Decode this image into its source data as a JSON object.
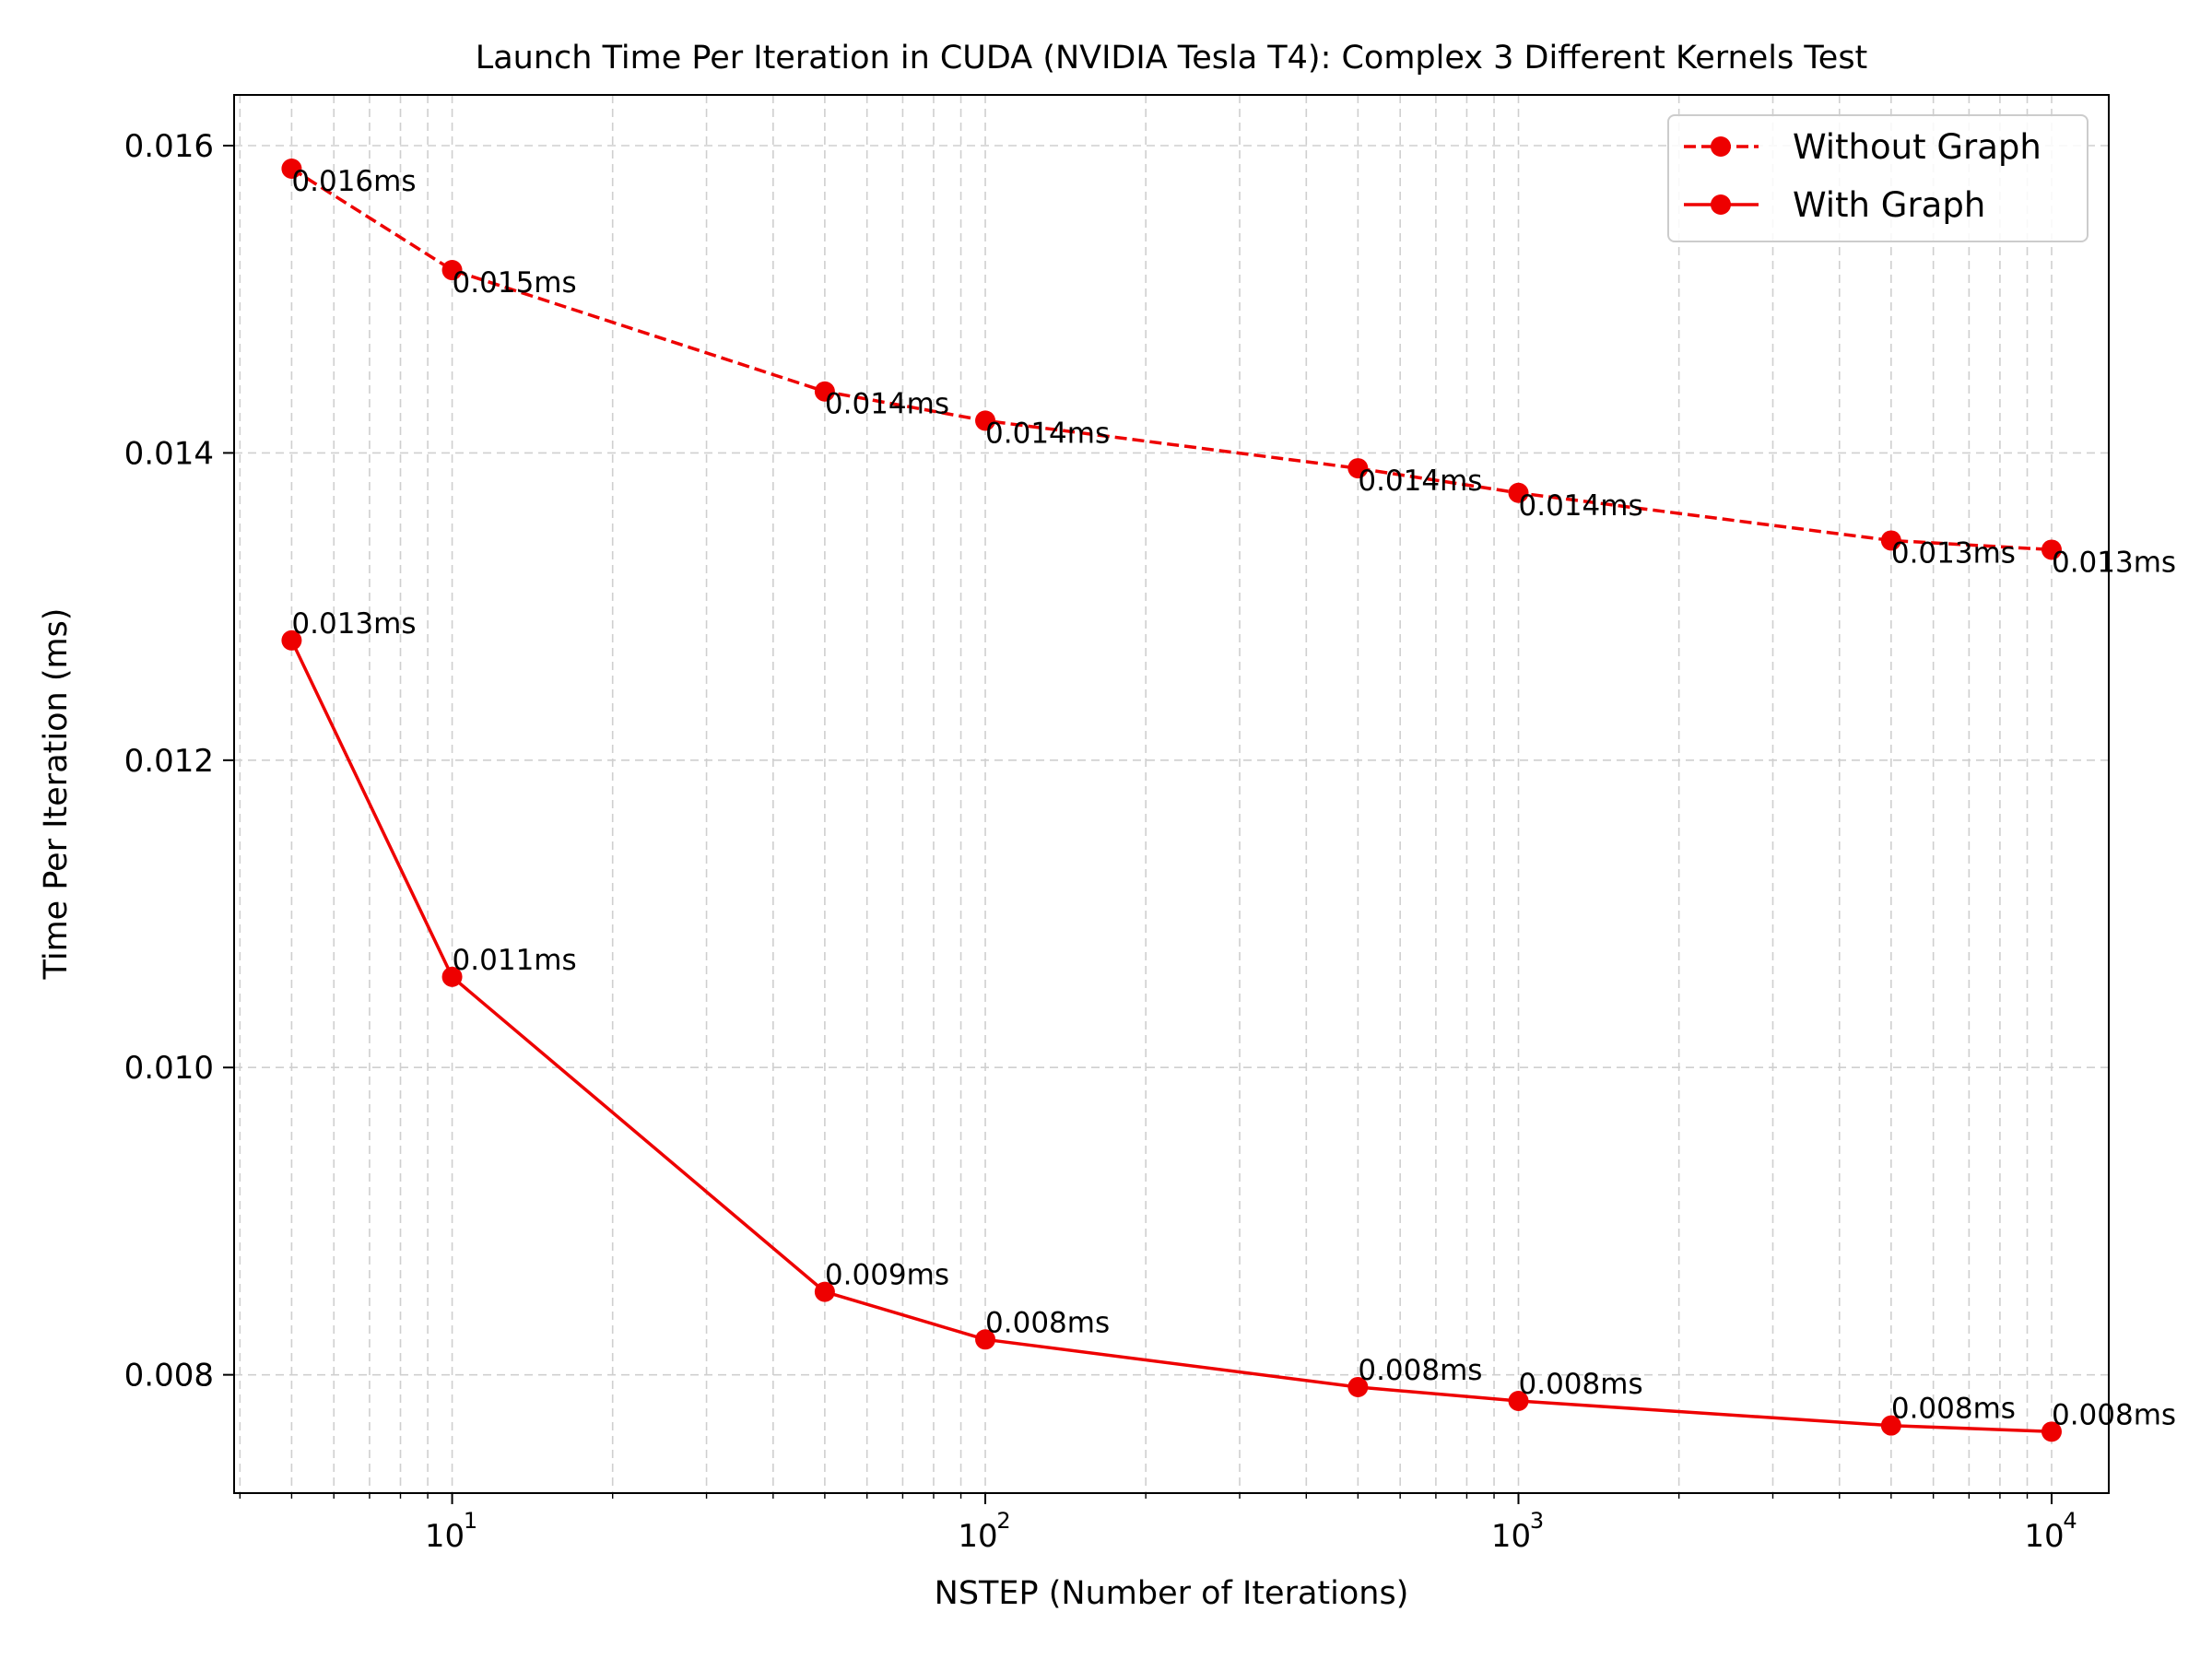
{
  "chart_data": {
    "type": "line",
    "title": "Launch Time Per Iteration in CUDA (NVIDIA Tesla T4): Complex 3 Different Kernels Test",
    "xlabel": "NSTEP (Number of Iterations)",
    "ylabel": "Time Per Iteration (ms)",
    "xscale": "log",
    "xlim": [
      3.9,
      12800
    ],
    "ylim": [
      0.00723,
      0.01633
    ],
    "x": [
      5,
      10,
      50,
      100,
      500,
      1000,
      5000,
      10000
    ],
    "x_ticks": [
      {
        "base": "10",
        "exp": "1",
        "value": 10
      },
      {
        "base": "10",
        "exp": "2",
        "value": 100
      },
      {
        "base": "10",
        "exp": "3",
        "value": 1000
      },
      {
        "base": "10",
        "exp": "4",
        "value": 10000
      }
    ],
    "y_ticks": [
      {
        "label": "0.008",
        "value": 0.008
      },
      {
        "label": "0.010",
        "value": 0.01
      },
      {
        "label": "0.012",
        "value": 0.012
      },
      {
        "label": "0.014",
        "value": 0.014
      },
      {
        "label": "0.016",
        "value": 0.016
      }
    ],
    "grid": true,
    "legend_position": "top-right",
    "series": [
      {
        "name": "Without Graph",
        "color": "#ee0000",
        "line_style": "dashed",
        "marker": "circle",
        "values": [
          0.01585,
          0.01519,
          0.0144,
          0.01421,
          0.0139,
          0.01374,
          0.01343,
          0.01337
        ],
        "labels": [
          "0.016ms",
          "0.015ms",
          "0.014ms",
          "0.014ms",
          "0.014ms",
          "0.014ms",
          "0.013ms",
          "0.013ms"
        ]
      },
      {
        "name": "With Graph",
        "color": "#ee0000",
        "line_style": "solid",
        "marker": "circle",
        "values": [
          0.01278,
          0.01059,
          0.00854,
          0.00823,
          0.00792,
          0.00783,
          0.00767,
          0.00763
        ],
        "labels": [
          "0.013ms",
          "0.011ms",
          "0.009ms",
          "0.008ms",
          "0.008ms",
          "0.008ms",
          "0.008ms",
          "0.008ms"
        ]
      }
    ]
  }
}
